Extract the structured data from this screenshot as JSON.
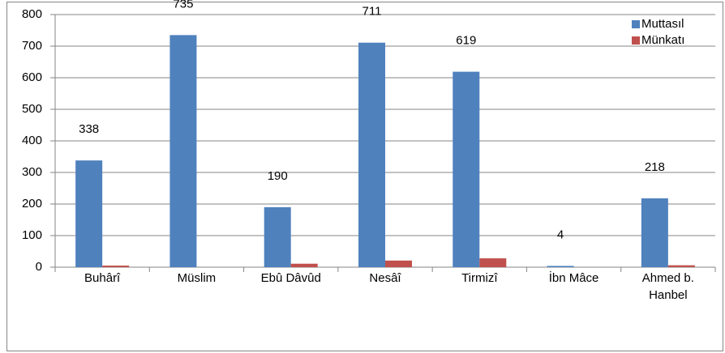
{
  "chart_data": {
    "type": "bar",
    "categories": [
      "Buhârî",
      "Müslim",
      "Ebû Dâvûd",
      "Nesâî",
      "Tirmizî",
      "İbn Mâce",
      "Ahmed b. Hanbel"
    ],
    "series": [
      {
        "name": "Muttasıl",
        "color": "#4f81bd",
        "values": [
          338,
          735,
          190,
          711,
          619,
          4,
          218
        ]
      },
      {
        "name": "Münkatı",
        "color": "#c0504d",
        "values": [
          5,
          0,
          11,
          21,
          28,
          0,
          6
        ]
      }
    ],
    "ylim": [
      0,
      800
    ],
    "yticks": [
      0,
      100,
      200,
      300,
      400,
      500,
      600,
      700,
      800
    ],
    "grid": true,
    "legend": "top-right"
  }
}
